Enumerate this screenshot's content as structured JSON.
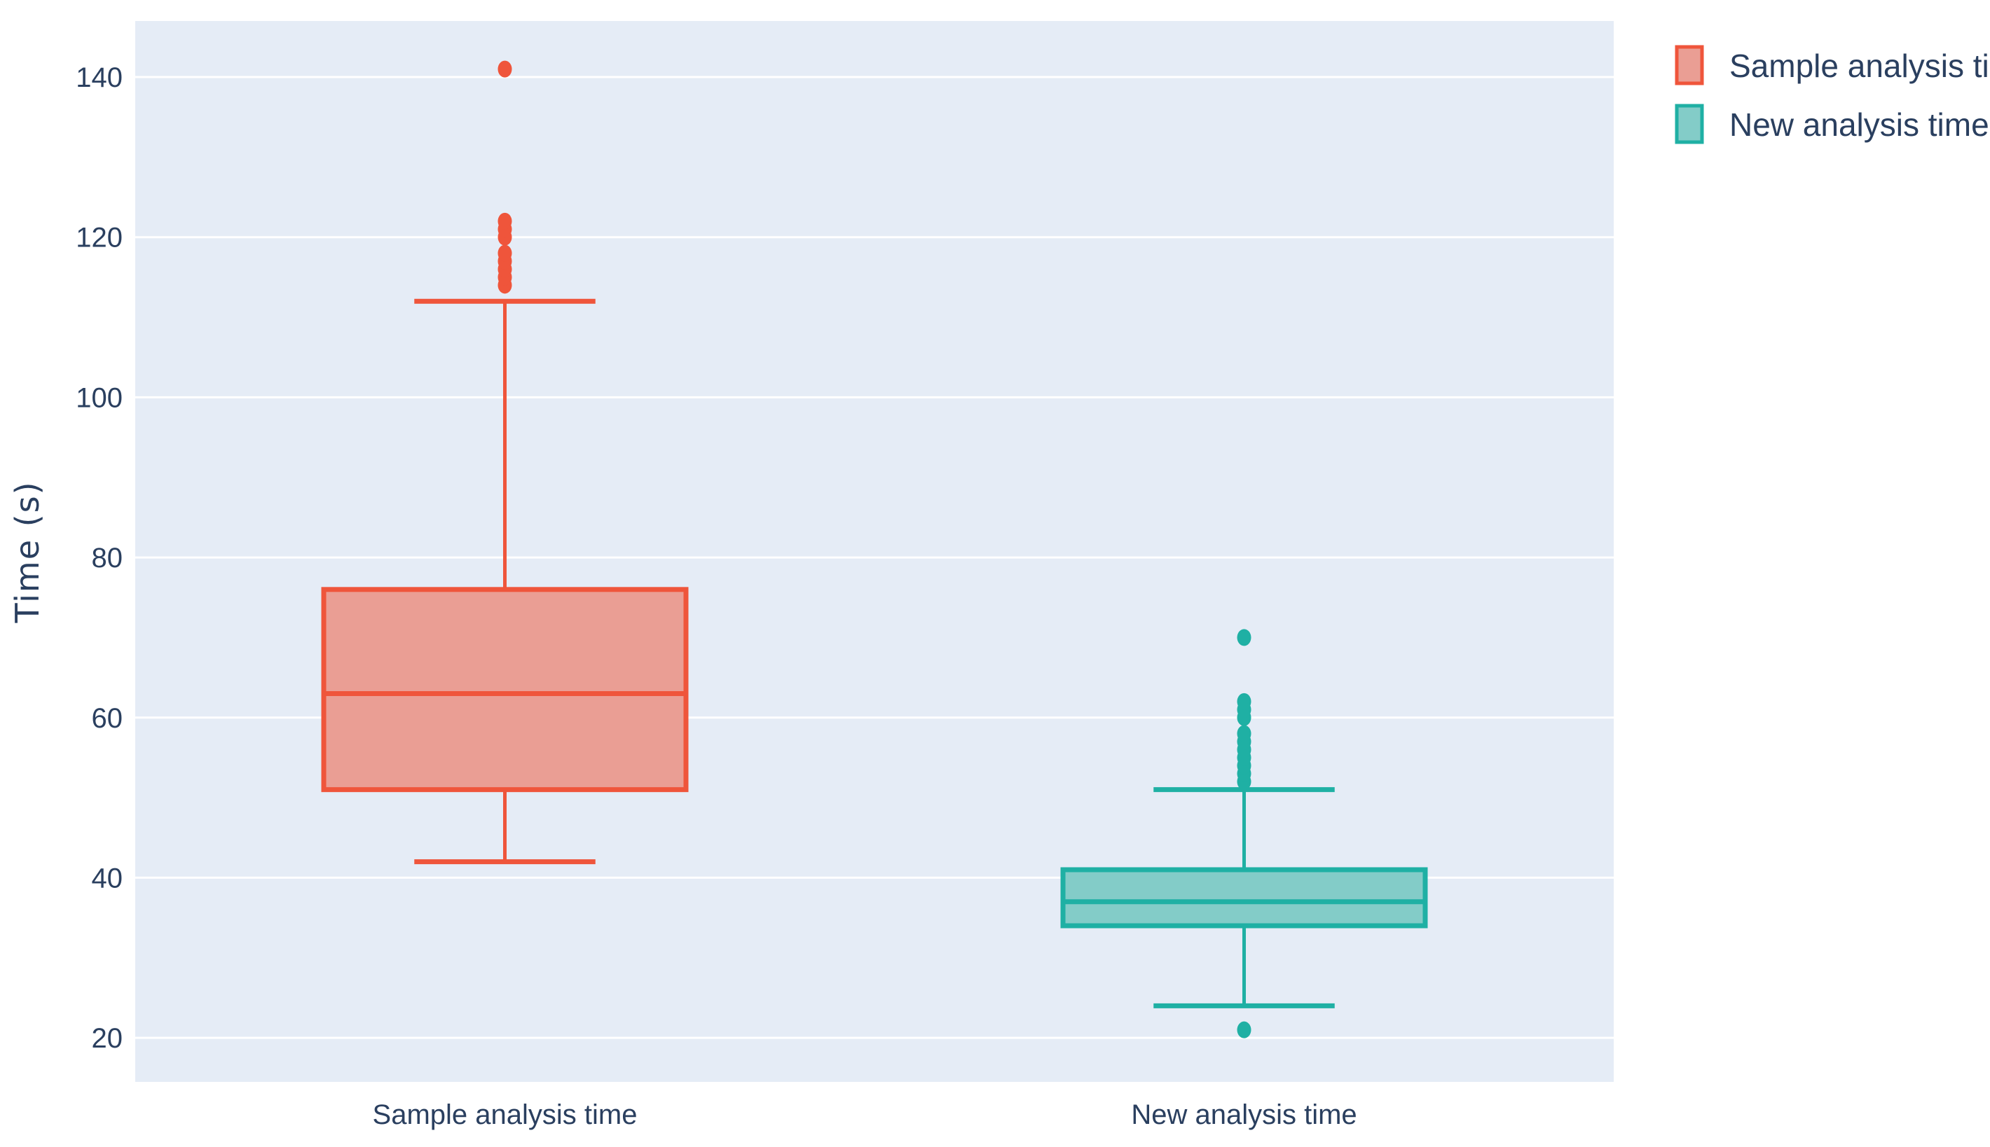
{
  "chart_data": {
    "type": "box",
    "title": "",
    "xlabel": "",
    "ylabel": "Time (s)",
    "ylim": [
      14.5,
      147
    ],
    "yticks": [
      20,
      40,
      60,
      80,
      100,
      120,
      140
    ],
    "grid": true,
    "legend_position": "top-right",
    "categories": [
      "Sample analysis time",
      "New analysis time"
    ],
    "series": [
      {
        "name": "Sample analysis time",
        "color": "#ef553b",
        "fill": "#ea9e94",
        "lower_whisker": 42,
        "q1": 51,
        "median": 63,
        "q3": 76,
        "upper_whisker": 112,
        "outliers": [
          114,
          115,
          116,
          117,
          118,
          120,
          121,
          122,
          141
        ]
      },
      {
        "name": "New analysis time",
        "color": "#1fb0a4",
        "fill": "#83ccc8",
        "lower_whisker": 24,
        "q1": 34,
        "median": 37,
        "q3": 41,
        "upper_whisker": 51,
        "outliers": [
          21,
          52,
          53,
          54,
          55,
          56,
          57,
          58,
          60,
          61,
          62,
          70
        ]
      }
    ]
  }
}
